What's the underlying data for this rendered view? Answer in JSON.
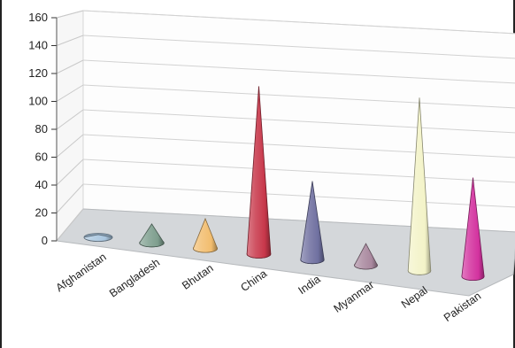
{
  "chart_data": {
    "type": "bar",
    "bar_shape": "cone",
    "view": "3d",
    "title": "",
    "xlabel": "",
    "ylabel": "",
    "categories": [
      "Afghanistan",
      "Bangladesh",
      "Bhutan",
      "China",
      "India",
      "Myanmar",
      "Nepal",
      "Pakistan"
    ],
    "values": [
      2,
      14,
      22,
      124,
      58,
      16,
      128,
      73
    ],
    "colors": [
      "#a9c6df",
      "#7e9e8e",
      "#f2bd6e",
      "#c8374a",
      "#6f70a0",
      "#a9889e",
      "#f3f3c8",
      "#d3329f"
    ],
    "ylim": [
      0,
      160
    ],
    "yticks": [
      0,
      20,
      40,
      60,
      80,
      100,
      120,
      140,
      160
    ],
    "grid": true,
    "legend": "none"
  }
}
